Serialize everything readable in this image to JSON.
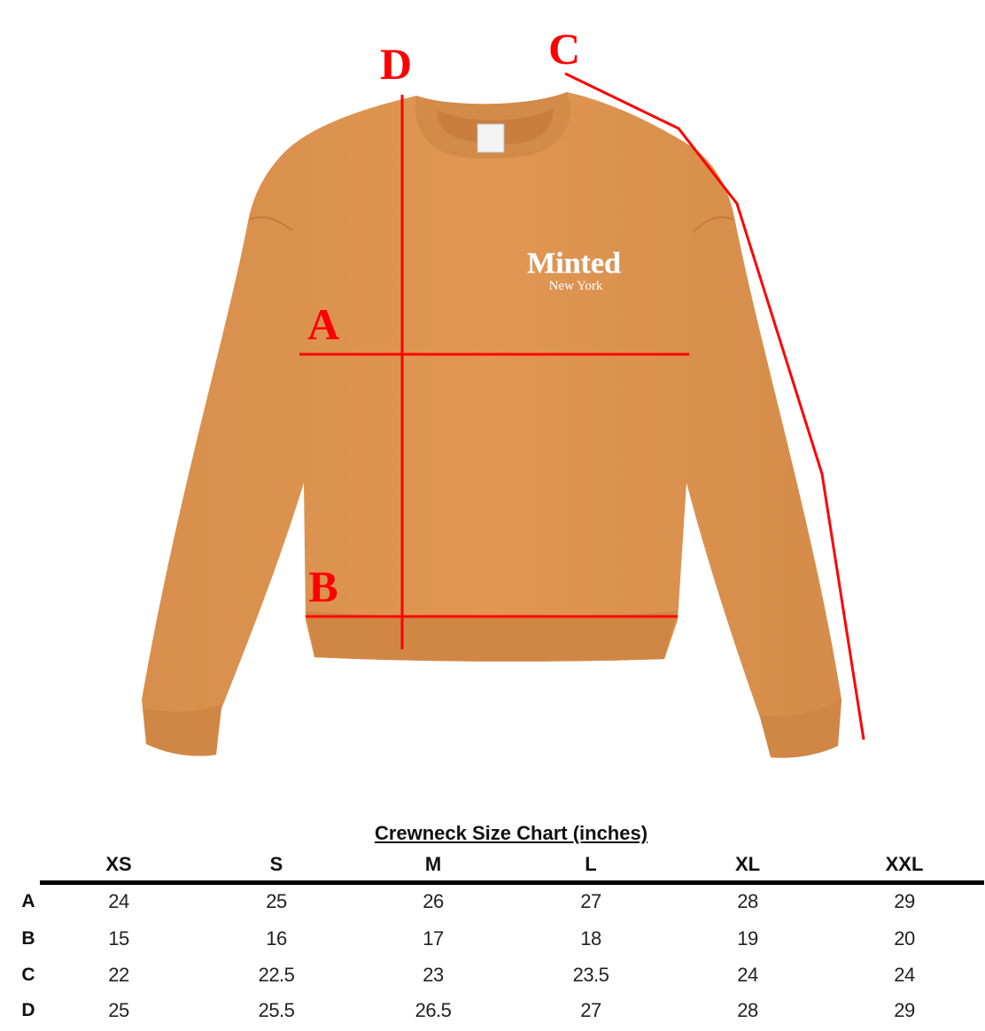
{
  "diagram": {
    "brand_main": "Minted",
    "brand_sub": "New York",
    "measure_labels": [
      "A",
      "B",
      "C",
      "D"
    ],
    "colors": {
      "garment": "#DE9550",
      "garment_shadow": "#C9803F",
      "rib": "#D48A48",
      "measure_line": "#FF0000"
    }
  },
  "table": {
    "title": "Crewneck Size Chart (inches)",
    "sizes": [
      "XS",
      "S",
      "M",
      "L",
      "XL",
      "XXL"
    ],
    "rows": [
      {
        "label": "A",
        "values": [
          "24",
          "25",
          "26",
          "27",
          "28",
          "29"
        ]
      },
      {
        "label": "B",
        "values": [
          "15",
          "16",
          "17",
          "18",
          "19",
          "20"
        ]
      },
      {
        "label": "C",
        "values": [
          "22",
          "22.5",
          "23",
          "23.5",
          "24",
          "24"
        ]
      },
      {
        "label": "D",
        "values": [
          "25",
          "25.5",
          "26.5",
          "27",
          "28",
          "29"
        ]
      }
    ]
  }
}
